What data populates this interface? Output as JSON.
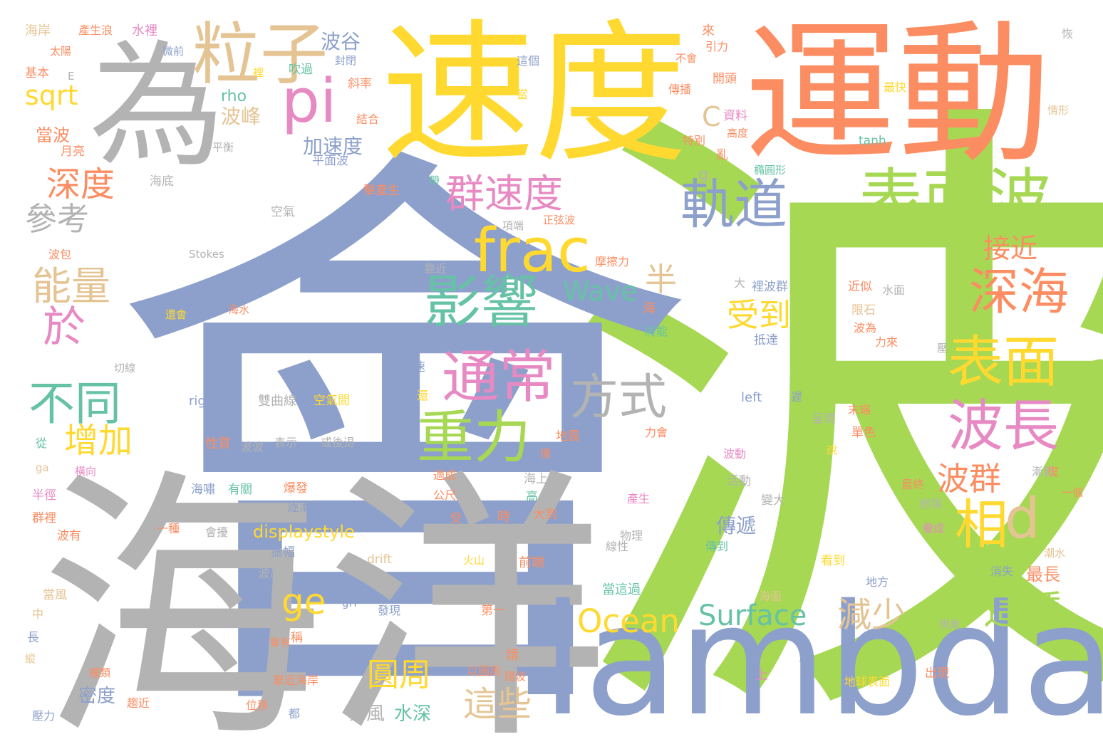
{
  "palette": {
    "green": "#a6d854",
    "blue": "#8da0cb",
    "gray": "#b3b3b3",
    "yellow": "#ffd92f",
    "orange": "#fc8d62",
    "pink": "#e78ac3",
    "tan": "#e5c494",
    "teal": "#66c2a5"
  },
  "big": [
    "波",
    "會",
    "海洋",
    "速度",
    "運動",
    "lambda",
    "為",
    "粒子",
    "pi",
    "表面波",
    "frac",
    "影響",
    "通常",
    "軌道",
    "群速度",
    "深海",
    "表面",
    "波長",
    "重力",
    "方式",
    "不同",
    "相",
    "d",
    "於",
    "能量",
    "增加",
    "深度",
    "參考",
    "sqrt",
    "受到",
    "ge",
    "Ocean",
    "Surface",
    "這種",
    "減少",
    "圓周",
    "這些",
    "波群",
    "接近",
    "半",
    "Wave",
    "波谷",
    "波峰",
    "加速度",
    "C",
    "rho",
    "g",
    "displaystyle",
    "水深",
    "暴風",
    "密度",
    "傳遞",
    "最長",
    "當波"
  ],
  "small": [
    "海岸",
    "產生浪",
    "水裡",
    "來",
    "恢",
    "太陽",
    "微前",
    "引力",
    "基本",
    "E",
    "裡",
    "封閉",
    "不會",
    "吹過",
    "這個",
    "傳播",
    "開頭",
    "斜率",
    "最快",
    "當",
    "結合",
    "資料",
    "情形",
    "月亮",
    "特別",
    "高度",
    "平衡",
    "tanh",
    "平面波",
    "亂",
    "橢圓形",
    "海底",
    "擊產生",
    "帶",
    "空氣",
    "項端",
    "正弦波",
    "Stokes",
    "波包",
    "摩擦力",
    "靠近",
    "近似",
    "大",
    "裡波群",
    "水面",
    "海水",
    "還會",
    "海",
    "限石",
    "將能",
    "切線",
    "波為",
    "抵達",
    "力來",
    "波速",
    "還",
    "壓",
    "left",
    "right",
    "雙曲線",
    "空氣間",
    "從",
    "性質",
    "表示",
    "或後退",
    "波波",
    "遲",
    "末端",
    "呈現",
    "力會",
    "地震",
    "單色",
    "ga",
    "橫向",
    "撞",
    "波動",
    "海上",
    "適成",
    "說",
    "半徑",
    "有關",
    "爆發",
    "活動",
    "最終",
    "公尺",
    "高",
    "漸雜",
    "復",
    "一個",
    "海嘯",
    "逐漸",
    "產生",
    "變大",
    "崩場",
    "群裡",
    "大到",
    "時",
    "受",
    "波有",
    "一種",
    "會擾",
    "疊成",
    "物理",
    "傳到",
    "振幅",
    "線性",
    "潮水",
    "前端",
    "波出現",
    "drift",
    "火山",
    "看到",
    "消失",
    "當風",
    "中",
    "地方",
    "gH",
    "當這過",
    "海面",
    "發現",
    "第一",
    "長",
    "會有",
    "稱",
    "請",
    "現象",
    "縱",
    "種類",
    "以圓周",
    "隨波",
    "出現",
    "靠近海岸",
    "壓力",
    "趨近",
    "位移",
    "三",
    "上",
    "地球表面",
    "都"
  ]
}
